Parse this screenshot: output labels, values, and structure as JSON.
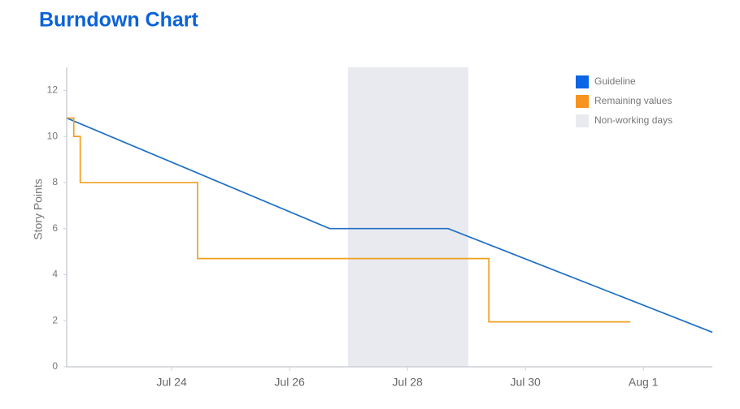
{
  "chart_data": {
    "type": "line",
    "title": "Burndown Chart",
    "ylabel": "Story Points",
    "xlim": [
      22.22,
      33.17
    ],
    "xticks": [
      {
        "value": 24,
        "label": "Jul 24"
      },
      {
        "value": 26,
        "label": "Jul 26"
      },
      {
        "value": 28,
        "label": "Jul 28"
      },
      {
        "value": 30,
        "label": "Jul 30"
      },
      {
        "value": 32,
        "label": "Aug 1"
      }
    ],
    "ylim": [
      0,
      13
    ],
    "yticks": [
      0,
      2,
      4,
      6,
      8,
      10,
      12
    ],
    "grid": false,
    "legend": "upper right",
    "series": [
      {
        "name": "Guideline",
        "color": "#1f6fc4",
        "legend_color": "#0a66e4",
        "x": [
          22.22,
          26.68,
          28.69,
          33.17
        ],
        "values": [
          10.8,
          6,
          6,
          1.5
        ]
      },
      {
        "name": "Remaining values",
        "color": "#f0a020",
        "legend_color": "#f7931e",
        "x": [
          22.22,
          22.34,
          22.34,
          22.45,
          22.45,
          24.44,
          24.44,
          29.38,
          29.38,
          31.78
        ],
        "values": [
          10.8,
          10.8,
          10,
          10,
          8,
          8,
          4.7,
          4.7,
          1.95,
          1.95
        ]
      }
    ],
    "shaded_regions": [
      {
        "name": "Non-working days",
        "color": "#e9eaef",
        "x": [
          26.99,
          29.03
        ]
      }
    ]
  }
}
